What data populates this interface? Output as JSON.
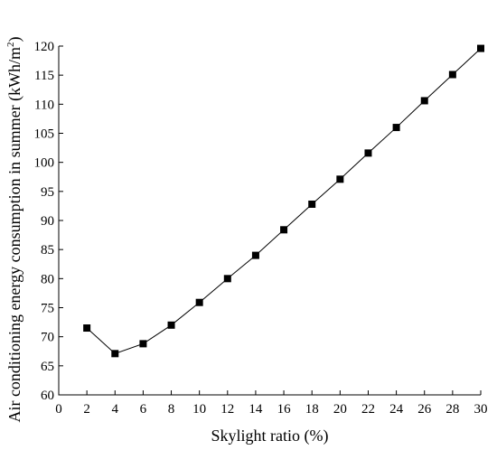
{
  "chart_data": {
    "type": "line",
    "xlabel": "Skylight ratio (%)",
    "ylabel": "Air conditioning energy consumption in summer (kWh/m",
    "ylabel_sup": "2",
    "ylabel_end": ")",
    "xlim": [
      0,
      30
    ],
    "ylim": [
      60,
      120
    ],
    "xticks": [
      0,
      2,
      4,
      6,
      8,
      10,
      12,
      14,
      16,
      18,
      20,
      22,
      24,
      26,
      28,
      30
    ],
    "yticks": [
      60,
      65,
      70,
      75,
      80,
      85,
      90,
      95,
      100,
      105,
      110,
      115,
      120
    ],
    "grid": false,
    "marker": "square",
    "series": [
      {
        "x": [
          2,
          4,
          6,
          8,
          10,
          12,
          14,
          16,
          18,
          20,
          22,
          24,
          26,
          28,
          30
        ],
        "values": [
          71.5,
          67.1,
          68.8,
          72.0,
          75.9,
          80.0,
          84.0,
          88.4,
          92.8,
          97.1,
          101.6,
          106.0,
          110.6,
          115.1,
          119.6
        ]
      }
    ],
    "colors": {
      "line": "#000000",
      "marker": "#000000",
      "axis": "#000000"
    }
  }
}
